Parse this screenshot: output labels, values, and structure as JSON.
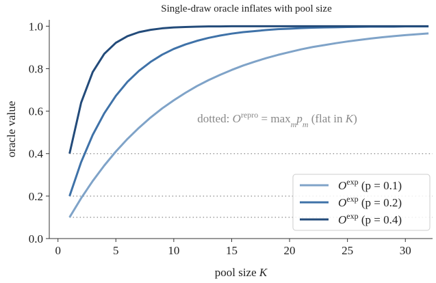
{
  "chart_data": {
    "type": "line",
    "title": "Single-draw oracle inflates with pool size",
    "xlabel": "pool size K",
    "ylabel": "oracle value",
    "x": [
      1,
      2,
      3,
      4,
      5,
      6,
      7,
      8,
      9,
      10,
      11,
      12,
      13,
      14,
      15,
      16,
      17,
      18,
      19,
      20,
      21,
      22,
      23,
      24,
      25,
      26,
      27,
      28,
      29,
      30,
      31,
      32
    ],
    "series": [
      {
        "name": "O exp (p = 0.1)",
        "color": "#7fa3c8",
        "values": [
          0.1,
          0.19,
          0.271,
          0.344,
          0.41,
          0.469,
          0.522,
          0.57,
          0.613,
          0.651,
          0.686,
          0.718,
          0.746,
          0.771,
          0.794,
          0.815,
          0.833,
          0.85,
          0.865,
          0.878,
          0.891,
          0.902,
          0.911,
          0.92,
          0.928,
          0.935,
          0.942,
          0.948,
          0.953,
          0.958,
          0.962,
          0.966
        ]
      },
      {
        "name": "O exp (p = 0.2)",
        "color": "#3f72a8",
        "values": [
          0.2,
          0.36,
          0.488,
          0.59,
          0.672,
          0.738,
          0.79,
          0.832,
          0.866,
          0.893,
          0.914,
          0.931,
          0.945,
          0.956,
          0.965,
          0.972,
          0.977,
          0.982,
          0.986,
          0.988,
          0.991,
          0.993,
          0.994,
          0.995,
          0.996,
          0.997,
          0.998,
          0.998,
          0.998,
          0.999,
          0.999,
          0.999
        ]
      },
      {
        "name": "O exp (p = 0.4)",
        "color": "#234b7a",
        "values": [
          0.4,
          0.64,
          0.784,
          0.87,
          0.922,
          0.953,
          0.972,
          0.983,
          0.99,
          0.994,
          0.996,
          0.998,
          0.999,
          0.999,
          1,
          1,
          1,
          1,
          1,
          1,
          1,
          1,
          1,
          1,
          1,
          1,
          1,
          1,
          1,
          1,
          1,
          1
        ]
      }
    ],
    "reference_lines": [
      0.1,
      0.2,
      0.4
    ],
    "reference_color": "#999999",
    "annotation": [
      {
        "text": "dotted: "
      },
      {
        "text": "O",
        "style": "italic"
      },
      {
        "text": "repro",
        "style": "sup"
      },
      {
        "text": " = "
      },
      {
        "text": "max"
      },
      {
        "text": "m",
        "style": "sub"
      },
      {
        "text": "p",
        "style": "italic"
      },
      {
        "text": "m",
        "style": "sub"
      },
      {
        "text": " (flat in "
      },
      {
        "text": "K",
        "style": "italic"
      },
      {
        "text": ")"
      }
    ],
    "xlim": [
      -0.75,
      32.35
    ],
    "ylim": [
      0,
      1.03
    ],
    "xticks": [
      0,
      5,
      10,
      15,
      20,
      25,
      30
    ],
    "yticks": [
      {
        "value": 0,
        "label": "0.0"
      },
      {
        "value": 0.2,
        "label": "0.2"
      },
      {
        "value": 0.4,
        "label": "0.4"
      },
      {
        "value": 0.6,
        "label": "0.6"
      },
      {
        "value": 0.8,
        "label": "0.8"
      },
      {
        "value": 1,
        "label": "1.0"
      }
    ],
    "legend": "lower right"
  }
}
